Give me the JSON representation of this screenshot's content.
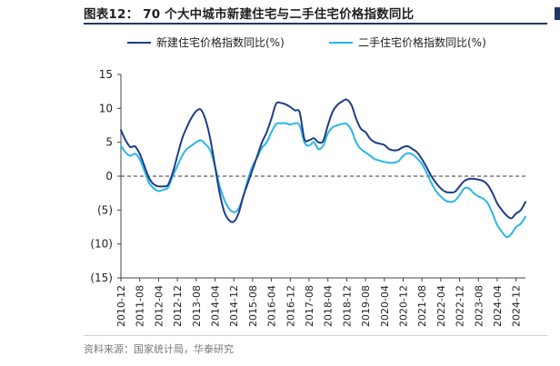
{
  "header": {
    "title": "图表12：  70 个大中城市新建住宅与二手住宅价格指数同比"
  },
  "footer": {
    "source": "资料来源：国家统计局，华泰研究"
  },
  "colors": {
    "new_home": "#1f3c88",
    "second_hand": "#29b6e8",
    "zero_line": "#333333",
    "title_rule": "#1f3864"
  },
  "chart_data": {
    "type": "line",
    "title": "70 个大中城市新建住宅与二手住宅价格指数同比",
    "ylim": [
      -15,
      15
    ],
    "ytick_values": [
      -15,
      -10,
      -5,
      0,
      5,
      10,
      15
    ],
    "ytick_labels": [
      "(15)",
      "(10)",
      "(5)",
      "0",
      "5",
      "10",
      "15"
    ],
    "xtick_labels": [
      "2010-12",
      "2011-08",
      "2012-04",
      "2012-12",
      "2013-08",
      "2014-04",
      "2014-12",
      "2015-08",
      "2016-04",
      "2016-12",
      "2017-08",
      "2018-04",
      "2018-12",
      "2019-08",
      "2020-04",
      "2020-12",
      "2021-08",
      "2022-04",
      "2022-12",
      "2023-08",
      "2024-04",
      "2024-12"
    ],
    "x_start": "2010-12",
    "x_end": "2025-04",
    "legend_position": "top",
    "grid": false,
    "series": [
      {
        "name": "新建住宅价格指数同比(%)",
        "color": "#1f3c88",
        "points": [
          [
            "2010-12",
            6.8
          ],
          [
            "2011-02",
            5.3
          ],
          [
            "2011-04",
            4.3
          ],
          [
            "2011-06",
            4.4
          ],
          [
            "2011-08",
            3.3
          ],
          [
            "2011-10",
            1.5
          ],
          [
            "2011-12",
            -0.3
          ],
          [
            "2012-02",
            -1.2
          ],
          [
            "2012-04",
            -1.5
          ],
          [
            "2012-06",
            -1.5
          ],
          [
            "2012-08",
            -1.3
          ],
          [
            "2012-10",
            0.5
          ],
          [
            "2012-12",
            3.0
          ],
          [
            "2013-02",
            5.5
          ],
          [
            "2013-04",
            7.2
          ],
          [
            "2013-06",
            8.6
          ],
          [
            "2013-08",
            9.6
          ],
          [
            "2013-10",
            9.8
          ],
          [
            "2013-12",
            8.3
          ],
          [
            "2014-02",
            5.5
          ],
          [
            "2014-04",
            1.5
          ],
          [
            "2014-06",
            -2.5
          ],
          [
            "2014-08",
            -5.3
          ],
          [
            "2014-10",
            -6.5
          ],
          [
            "2014-12",
            -6.7
          ],
          [
            "2015-02",
            -5.5
          ],
          [
            "2015-04",
            -3.0
          ],
          [
            "2015-06",
            -1.0
          ],
          [
            "2015-08",
            1.0
          ],
          [
            "2015-10",
            3.0
          ],
          [
            "2015-12",
            5.0
          ],
          [
            "2016-02",
            6.5
          ],
          [
            "2016-04",
            8.5
          ],
          [
            "2016-06",
            10.7
          ],
          [
            "2016-08",
            10.8
          ],
          [
            "2016-10",
            10.6
          ],
          [
            "2016-12",
            10.2
          ],
          [
            "2017-02",
            9.7
          ],
          [
            "2017-04",
            9.4
          ],
          [
            "2017-06",
            5.5
          ],
          [
            "2017-08",
            5.3
          ],
          [
            "2017-10",
            5.6
          ],
          [
            "2017-12",
            5.0
          ],
          [
            "2018-02",
            5.2
          ],
          [
            "2018-04",
            7.5
          ],
          [
            "2018-06",
            9.5
          ],
          [
            "2018-08",
            10.5
          ],
          [
            "2018-10",
            11.0
          ],
          [
            "2018-12",
            11.3
          ],
          [
            "2019-02",
            10.5
          ],
          [
            "2019-04",
            8.5
          ],
          [
            "2019-06",
            7.0
          ],
          [
            "2019-08",
            6.5
          ],
          [
            "2019-10",
            5.5
          ],
          [
            "2019-12",
            5.0
          ],
          [
            "2020-02",
            4.8
          ],
          [
            "2020-04",
            4.6
          ],
          [
            "2020-06",
            4.0
          ],
          [
            "2020-08",
            3.8
          ],
          [
            "2020-10",
            3.9
          ],
          [
            "2020-12",
            4.3
          ],
          [
            "2021-02",
            4.4
          ],
          [
            "2021-04",
            4.0
          ],
          [
            "2021-06",
            3.5
          ],
          [
            "2021-08",
            2.5
          ],
          [
            "2021-10",
            1.3
          ],
          [
            "2021-12",
            0.0
          ],
          [
            "2022-02",
            -1.0
          ],
          [
            "2022-04",
            -1.8
          ],
          [
            "2022-06",
            -2.3
          ],
          [
            "2022-08",
            -2.4
          ],
          [
            "2022-10",
            -2.3
          ],
          [
            "2022-12",
            -1.5
          ],
          [
            "2023-02",
            -0.7
          ],
          [
            "2023-04",
            -0.4
          ],
          [
            "2023-06",
            -0.4
          ],
          [
            "2023-08",
            -0.5
          ],
          [
            "2023-10",
            -0.7
          ],
          [
            "2023-12",
            -1.3
          ],
          [
            "2024-02",
            -2.5
          ],
          [
            "2024-04",
            -4.0
          ],
          [
            "2024-06",
            -5.0
          ],
          [
            "2024-08",
            -5.8
          ],
          [
            "2024-10",
            -6.2
          ],
          [
            "2024-12",
            -5.5
          ],
          [
            "2025-02",
            -5.0
          ],
          [
            "2025-04",
            -3.8
          ]
        ]
      },
      {
        "name": "二手住宅价格指数同比(%)",
        "color": "#29b6e8",
        "points": [
          [
            "2010-12",
            4.5
          ],
          [
            "2011-02",
            3.5
          ],
          [
            "2011-04",
            3.0
          ],
          [
            "2011-06",
            3.3
          ],
          [
            "2011-08",
            2.5
          ],
          [
            "2011-10",
            0.8
          ],
          [
            "2011-12",
            -1.0
          ],
          [
            "2012-02",
            -1.8
          ],
          [
            "2012-04",
            -2.2
          ],
          [
            "2012-06",
            -2.0
          ],
          [
            "2012-08",
            -1.7
          ],
          [
            "2012-10",
            0.0
          ],
          [
            "2012-12",
            1.5
          ],
          [
            "2013-02",
            3.0
          ],
          [
            "2013-04",
            4.0
          ],
          [
            "2013-06",
            4.5
          ],
          [
            "2013-08",
            5.0
          ],
          [
            "2013-10",
            5.3
          ],
          [
            "2013-12",
            4.7
          ],
          [
            "2014-02",
            3.8
          ],
          [
            "2014-04",
            1.5
          ],
          [
            "2014-06",
            -1.5
          ],
          [
            "2014-08",
            -3.5
          ],
          [
            "2014-10",
            -4.8
          ],
          [
            "2014-12",
            -5.3
          ],
          [
            "2015-02",
            -4.8
          ],
          [
            "2015-04",
            -3.0
          ],
          [
            "2015-06",
            -0.5
          ],
          [
            "2015-08",
            1.5
          ],
          [
            "2015-10",
            2.8
          ],
          [
            "2015-12",
            4.2
          ],
          [
            "2016-02",
            5.0
          ],
          [
            "2016-04",
            6.5
          ],
          [
            "2016-06",
            7.7
          ],
          [
            "2016-08",
            7.8
          ],
          [
            "2016-10",
            7.8
          ],
          [
            "2016-12",
            7.6
          ],
          [
            "2017-02",
            7.8
          ],
          [
            "2017-04",
            7.5
          ],
          [
            "2017-06",
            5.0
          ],
          [
            "2017-08",
            4.5
          ],
          [
            "2017-10",
            5.0
          ],
          [
            "2017-12",
            4.0
          ],
          [
            "2018-02",
            4.5
          ],
          [
            "2018-04",
            6.3
          ],
          [
            "2018-06",
            7.2
          ],
          [
            "2018-08",
            7.5
          ],
          [
            "2018-10",
            7.7
          ],
          [
            "2018-12",
            7.7
          ],
          [
            "2019-02",
            6.8
          ],
          [
            "2019-04",
            5.0
          ],
          [
            "2019-06",
            4.0
          ],
          [
            "2019-08",
            3.5
          ],
          [
            "2019-10",
            3.0
          ],
          [
            "2019-12",
            2.5
          ],
          [
            "2020-02",
            2.3
          ],
          [
            "2020-04",
            2.1
          ],
          [
            "2020-06",
            2.0
          ],
          [
            "2020-08",
            2.0
          ],
          [
            "2020-10",
            2.2
          ],
          [
            "2020-12",
            3.0
          ],
          [
            "2021-02",
            3.4
          ],
          [
            "2021-04",
            3.2
          ],
          [
            "2021-06",
            2.6
          ],
          [
            "2021-08",
            1.8
          ],
          [
            "2021-10",
            0.5
          ],
          [
            "2021-12",
            -1.0
          ],
          [
            "2022-02",
            -2.2
          ],
          [
            "2022-04",
            -3.0
          ],
          [
            "2022-06",
            -3.6
          ],
          [
            "2022-08",
            -3.8
          ],
          [
            "2022-10",
            -3.6
          ],
          [
            "2022-12",
            -2.8
          ],
          [
            "2023-02",
            -1.8
          ],
          [
            "2023-04",
            -1.8
          ],
          [
            "2023-06",
            -2.5
          ],
          [
            "2023-08",
            -3.0
          ],
          [
            "2023-10",
            -3.3
          ],
          [
            "2023-12",
            -4.0
          ],
          [
            "2024-02",
            -5.5
          ],
          [
            "2024-04",
            -7.2
          ],
          [
            "2024-06",
            -8.2
          ],
          [
            "2024-08",
            -9.0
          ],
          [
            "2024-10",
            -8.5
          ],
          [
            "2024-12",
            -7.5
          ],
          [
            "2025-02",
            -7.0
          ],
          [
            "2025-04",
            -6.0
          ]
        ]
      }
    ]
  }
}
